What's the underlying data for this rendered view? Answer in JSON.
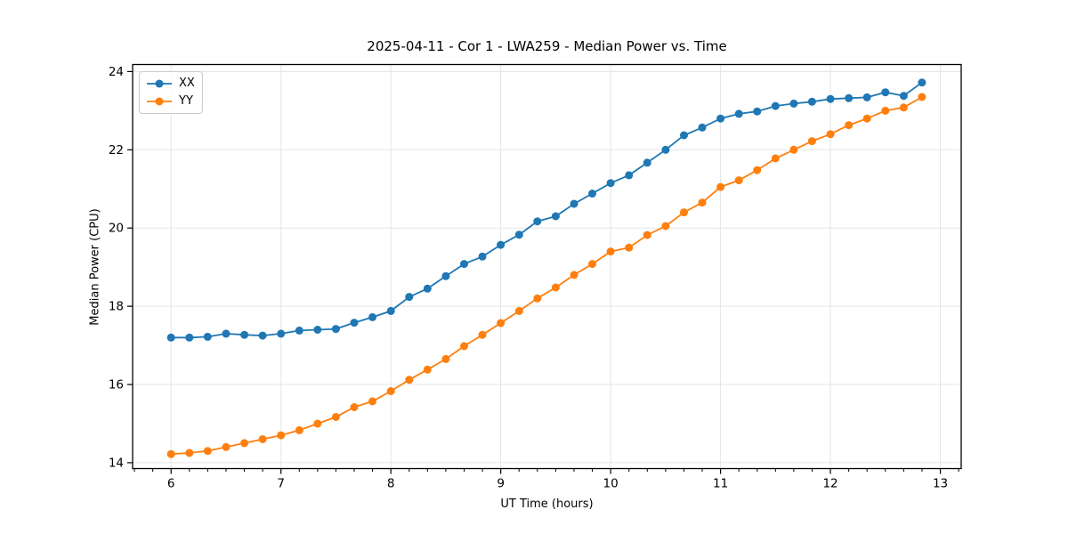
{
  "chart_data": {
    "type": "line",
    "title": "2025-04-11 - Cor 1 - LWA259 - Median Power vs. Time",
    "xlabel": "UT Time (hours)",
    "ylabel": "Median Power (CPU)",
    "xlim": [
      5.65,
      13.19
    ],
    "ylim": [
      13.85,
      24.18
    ],
    "xticks": [
      6,
      7,
      8,
      9,
      10,
      11,
      12,
      13
    ],
    "yticks": [
      14,
      16,
      18,
      20,
      22,
      24
    ],
    "minor_tick_step_x": 0.166667,
    "grid": true,
    "grid_color": "#e5e5e5",
    "legend_position": "upper-left",
    "x": [
      6.0,
      6.167,
      6.333,
      6.5,
      6.667,
      6.833,
      7.0,
      7.167,
      7.333,
      7.5,
      7.667,
      7.833,
      8.0,
      8.167,
      8.333,
      8.5,
      8.667,
      8.833,
      9.0,
      9.167,
      9.333,
      9.5,
      9.667,
      9.833,
      10.0,
      10.167,
      10.333,
      10.5,
      10.667,
      10.833,
      11.0,
      11.167,
      11.333,
      11.5,
      11.667,
      11.833,
      12.0,
      12.167,
      12.333,
      12.5,
      12.667,
      12.833
    ],
    "series": [
      {
        "name": "XX",
        "color": "#1f77b4",
        "values": [
          17.2,
          17.2,
          17.22,
          17.3,
          17.27,
          17.25,
          17.3,
          17.38,
          17.4,
          17.42,
          17.58,
          17.72,
          17.88,
          18.24,
          18.45,
          18.77,
          19.08,
          19.27,
          19.57,
          19.83,
          20.17,
          20.3,
          20.62,
          20.88,
          21.15,
          21.35,
          21.67,
          22.0,
          22.37,
          22.57,
          22.8,
          22.92,
          22.98,
          23.12,
          23.18,
          23.23,
          23.3,
          23.32,
          23.34,
          23.47,
          23.38,
          23.72
        ]
      },
      {
        "name": "YY",
        "color": "#ff7f0e",
        "values": [
          14.22,
          14.25,
          14.3,
          14.4,
          14.5,
          14.6,
          14.7,
          14.83,
          15.0,
          15.17,
          15.42,
          15.57,
          15.83,
          16.12,
          16.38,
          16.65,
          16.98,
          17.27,
          17.57,
          17.88,
          18.2,
          18.48,
          18.8,
          19.08,
          19.4,
          19.5,
          19.82,
          20.05,
          20.4,
          20.65,
          21.05,
          21.22,
          21.48,
          21.78,
          22.0,
          22.22,
          22.4,
          22.63,
          22.8,
          23.0,
          23.08,
          23.35
        ]
      }
    ]
  }
}
